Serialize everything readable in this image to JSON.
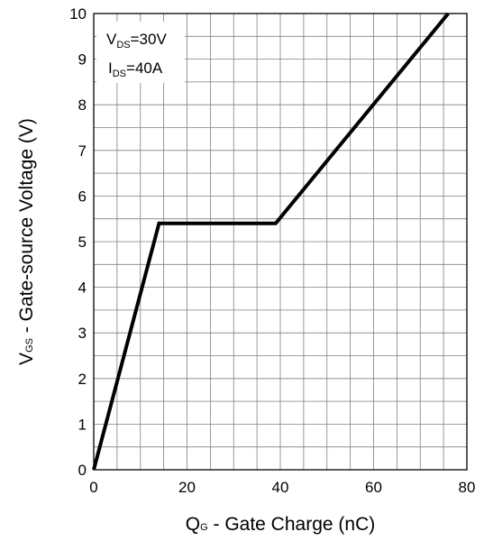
{
  "chart_data": {
    "type": "line",
    "title": "",
    "xlabel": {
      "main": "Q",
      "sub": "G",
      "rest": " - Gate Charge (nC)"
    },
    "ylabel": {
      "main": "V",
      "sub": "GS",
      "rest": " - Gate-source Voltage (V)"
    },
    "xlim": [
      0,
      80
    ],
    "ylim": [
      0,
      10
    ],
    "xticks": [
      "0",
      "20",
      "40",
      "60",
      "80"
    ],
    "yticks": [
      "0",
      "1",
      "2",
      "3",
      "4",
      "5",
      "6",
      "7",
      "8",
      "9",
      "10"
    ],
    "x_minor_step": 5,
    "y_minor_step": 0.5,
    "grid": true,
    "series": [
      {
        "x": [
          0,
          14,
          39,
          76
        ],
        "y": [
          0,
          5.4,
          5.4,
          10
        ]
      }
    ],
    "annotations": [
      {
        "main": "V",
        "sub": "DS",
        "rest": "=30V"
      },
      {
        "main": "I",
        "sub": "DS",
        "rest": "=40A"
      }
    ],
    "colors": {
      "line": "#000000",
      "grid": "#808080",
      "frame": "#000000"
    }
  }
}
